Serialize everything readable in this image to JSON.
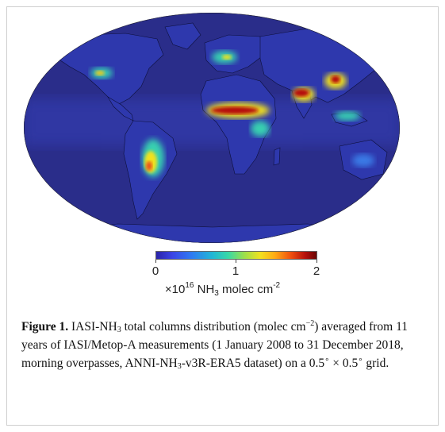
{
  "figure": {
    "map_description_colors": {
      "ocean": "#2a2d8a",
      "low": "#3a4ad8",
      "mid": "#39d0b0",
      "high": "#f2e11f",
      "max": "#b5100b"
    },
    "colorbar": {
      "ticks": [
        "0",
        "1",
        "2"
      ],
      "unit_prefix": "×10",
      "unit_exponent": "16",
      "unit_species": "NH",
      "unit_species_sub": "3",
      "unit_rest": " molec cm",
      "unit_rest_exp": "-2"
    },
    "caption": {
      "label": "Figure 1.",
      "text_1": " IASI-NH",
      "sub_1": "3",
      "text_2": " total columns distribution (molec cm",
      "sup_1": "−2",
      "text_3": ") averaged from 11 years of IASI/Metop-A measurements (1 January 2008 to 31 December 2018, morning overpasses, ANNI-NH",
      "sub_2": "3",
      "text_4": "-v3R-ERA5 dataset) on a 0.5",
      "deg_1": "∘",
      "text_5": " × 0.5",
      "deg_2": "∘",
      "text_6": " grid."
    }
  }
}
